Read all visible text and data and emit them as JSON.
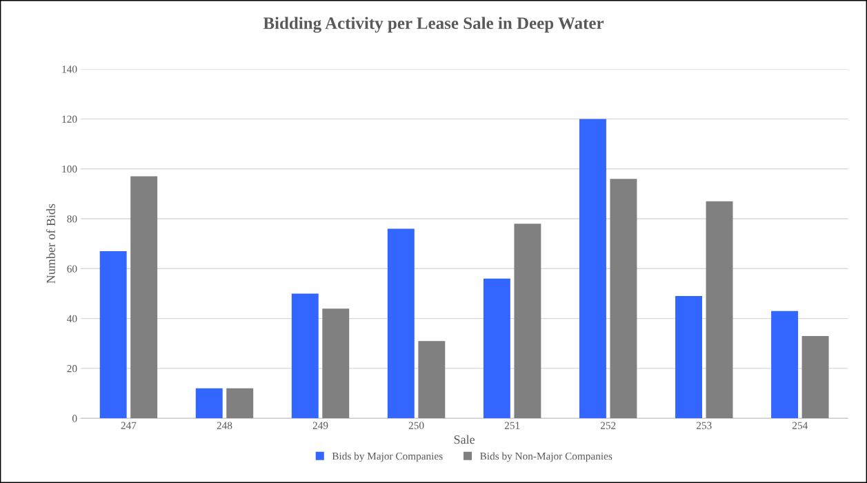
{
  "chart_data": {
    "type": "bar",
    "title": "Bidding Activity per Lease Sale in Deep Water",
    "xlabel": "Sale",
    "ylabel": "Number of Bids",
    "categories": [
      "247",
      "248",
      "249",
      "250",
      "251",
      "252",
      "253",
      "254"
    ],
    "series": [
      {
        "name": "Bids by Major Companies",
        "color": "#3366ff",
        "values": [
          67,
          12,
          50,
          76,
          56,
          120,
          49,
          43
        ]
      },
      {
        "name": "Bids by Non-Major Companies",
        "color": "#808080",
        "values": [
          97,
          12,
          44,
          31,
          78,
          96,
          87,
          33
        ]
      }
    ],
    "ylim": [
      0,
      140
    ],
    "yticks": [
      0,
      20,
      40,
      60,
      80,
      100,
      120,
      140
    ],
    "grid": "y",
    "legend": "bottom"
  }
}
